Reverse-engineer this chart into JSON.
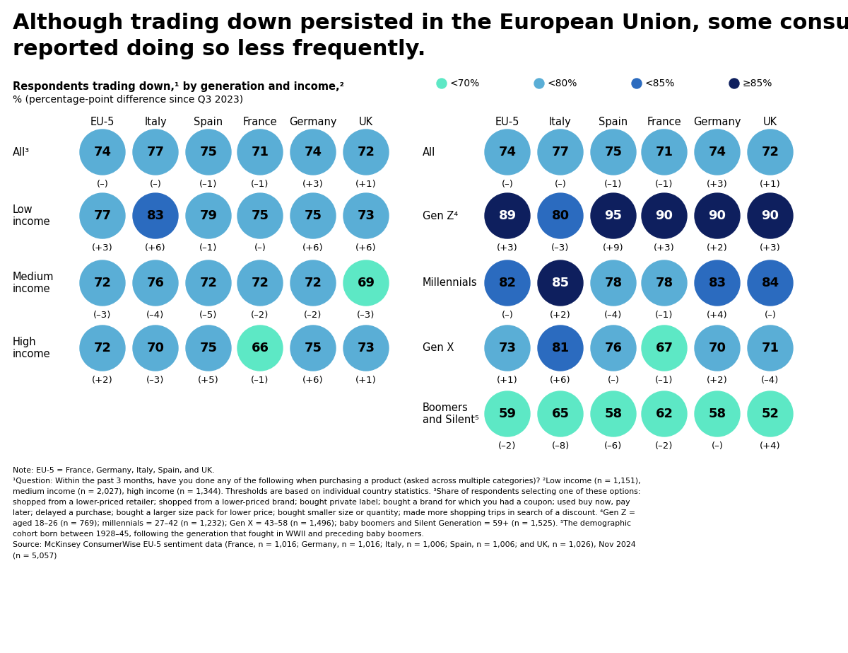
{
  "title_line1": "Although trading down persisted in the European Union, some consumers",
  "title_line2": "reported doing so less frequently.",
  "subtitle_bold": "Respondents trading down,¹ by generation and income,²",
  "subtitle_normal": "% (percentage-point difference since Q3 2023)",
  "columns": [
    "EU-5",
    "Italy",
    "Spain",
    "France",
    "Germany",
    "UK"
  ],
  "legend_labels": [
    "<70%",
    "<80%",
    "<85%",
    "≥85%"
  ],
  "legend_colors": [
    "#5DE8C5",
    "#5AAED6",
    "#2B6BBF",
    "#0E1F5E"
  ],
  "left_rows": [
    "All³",
    "Low\nincome",
    "Medium\nincome",
    "High\nincome"
  ],
  "right_rows": [
    "All",
    "Gen Z⁴",
    "Millennials",
    "Gen X",
    "Boomers\nand Silent⁵"
  ],
  "left_data": [
    {
      "values": [
        74,
        77,
        75,
        71,
        74,
        72
      ],
      "changes": [
        "(–)",
        "(–)",
        "(–1)",
        "(–1)",
        "(+3)",
        "(+1)"
      ]
    },
    {
      "values": [
        77,
        83,
        79,
        75,
        75,
        73
      ],
      "changes": [
        "(+3)",
        "(+6)",
        "(–1)",
        "(–)",
        "(+6)",
        "(+6)"
      ]
    },
    {
      "values": [
        72,
        76,
        72,
        72,
        72,
        69
      ],
      "changes": [
        "(–3)",
        "(–4)",
        "(–5)",
        "(–2)",
        "(–2)",
        "(–3)"
      ]
    },
    {
      "values": [
        72,
        70,
        75,
        66,
        75,
        73
      ],
      "changes": [
        "(+2)",
        "(–3)",
        "(+5)",
        "(–1)",
        "(+6)",
        "(+1)"
      ]
    }
  ],
  "right_data": [
    {
      "values": [
        74,
        77,
        75,
        71,
        74,
        72
      ],
      "changes": [
        "(–)",
        "(–)",
        "(–1)",
        "(–1)",
        "(+3)",
        "(+1)"
      ]
    },
    {
      "values": [
        89,
        80,
        95,
        90,
        90,
        90
      ],
      "changes": [
        "(+3)",
        "(–3)",
        "(+9)",
        "(+3)",
        "(+2)",
        "(+3)"
      ]
    },
    {
      "values": [
        82,
        85,
        78,
        78,
        83,
        84
      ],
      "changes": [
        "(–)",
        "(+2)",
        "(–4)",
        "(–1)",
        "(+4)",
        "(–)"
      ]
    },
    {
      "values": [
        73,
        81,
        76,
        67,
        70,
        71
      ],
      "changes": [
        "(+1)",
        "(+6)",
        "(–)",
        "(–1)",
        "(+2)",
        "(–4)"
      ]
    },
    {
      "values": [
        59,
        65,
        58,
        62,
        58,
        52
      ],
      "changes": [
        "(–2)",
        "(–8)",
        "(–6)",
        "(–2)",
        "(–)",
        "(+4)"
      ]
    }
  ],
  "color_thresholds": [
    70,
    80,
    85
  ],
  "colors": [
    "#5DE8C5",
    "#5AAED6",
    "#2B6BBF",
    "#0E1F5E"
  ],
  "note_lines": [
    "Note: EU-5 = France, Germany, Italy, Spain, and UK.",
    "¹Question: Within the past 3 months, have you done any of the following when purchasing a product (asked across multiple categories)? ²Low income (n = 1,151),",
    "medium income (n = 2,027), high income (n = 1,344). Thresholds are based on individual country statistics. ³Share of respondents selecting one of these options:",
    "shopped from a lower-priced retailer; shopped from a lower-priced brand; bought private label; bought a brand for which you had a coupon; used buy now, pay",
    "later; delayed a purchase; bought a larger size pack for lower price; bought smaller size or quantity; made more shopping trips in search of a discount. ⁴Gen Z =",
    "aged 18–26 (n = 769); millennials = 27–42 (n = 1,232); Gen X = 43–58 (n = 1,496); baby boomers and Silent Generation = 59+ (n = 1,525). ⁵The demographic",
    "cohort born between 1928–45, following the generation that fought in WWII and preceding baby boomers.",
    "Source: McKinsey ConsumerWise EU-5 sentiment data (France, n = 1,016; Germany, n = 1,016; Italy, n = 1,006; Spain, n = 1,006; and UK, n = 1,026), Nov 2024",
    "(n = 5,057)"
  ],
  "background_color": "#FFFFFF"
}
